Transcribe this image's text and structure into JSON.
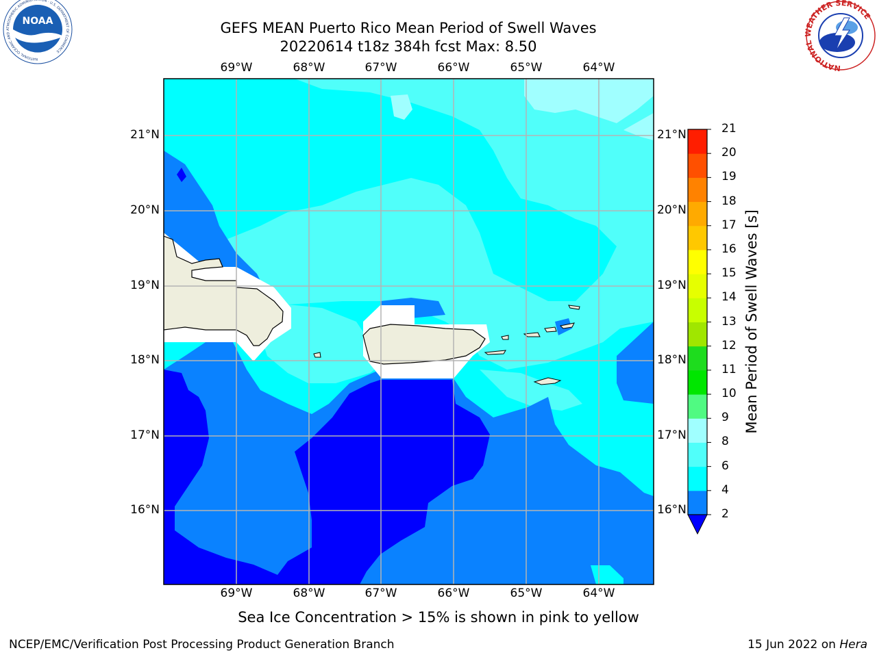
{
  "title": {
    "line1": "GEFS MEAN Puerto Rico Mean Period of Swell Waves",
    "line2": "20220614 t18z 384h fcst   Max: 8.50"
  },
  "map": {
    "lon_labels": [
      "69°W",
      "68°W",
      "67°W",
      "66°W",
      "65°W",
      "64°W"
    ],
    "lat_labels": [
      "21°N",
      "20°N",
      "19°N",
      "18°N",
      "17°N",
      "16°N"
    ],
    "colors": {
      "lt2": "#0000ff",
      "2to4": "#0a82ff",
      "4to6": "#00ffff",
      "6to8": "#50fffa",
      "8to9": "#a0ffff",
      "land": "#eeeedd",
      "no_data": "#ffffff",
      "grid": "#b4b4b4"
    }
  },
  "colorbar": {
    "label": "Mean Period of Swell Waves [s]",
    "ticks": [
      "2",
      "4",
      "6",
      "8",
      "9",
      "10",
      "11",
      "12",
      "13",
      "14",
      "15",
      "16",
      "17",
      "18",
      "19",
      "20",
      "21"
    ],
    "colors": [
      "#0a82ff",
      "#00ffff",
      "#50fffa",
      "#a0ffff",
      "#50fa82",
      "#00e600",
      "#1edc1e",
      "#a0e600",
      "#c8ff00",
      "#e6ff00",
      "#ffff00",
      "#ffc800",
      "#ffaa00",
      "#ff8200",
      "#ff5000",
      "#ff1e00"
    ],
    "extend_color": "#0000ff"
  },
  "logos": {
    "noaa_text": "NOAA",
    "noaa_ring": "NATIONAL OCEANIC AND ATMOSPHERIC ADMINISTRATION · U.S. DEPARTMENT OF COMMERCE",
    "nws_ring": "NATIONAL WEATHER SERVICE"
  },
  "subnote": "Sea Ice Concentration > 15% is shown in pink to yellow",
  "footer": {
    "left": "NCEP/EMC/Verification Post Processing Product Generation Branch",
    "date": "15 Jun 2022 on ",
    "host": "Hera"
  }
}
